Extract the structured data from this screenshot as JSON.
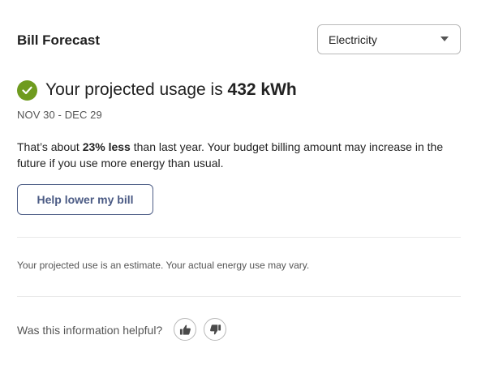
{
  "header": {
    "title": "Bill Forecast"
  },
  "fuel_select": {
    "selected": "Electricity",
    "caret_icon": "chevron-down-icon"
  },
  "forecast": {
    "status_icon": "check-circle-icon",
    "status_color": "#6f9b1f",
    "headline_prefix": "Your projected usage is ",
    "headline_value": "432 kWh",
    "date_range": "NOV 30 - DEC 29",
    "description_prefix": "That’s about ",
    "description_emphasis": "23% less",
    "description_suffix": " than last year. Your budget billing amount may increase in the future if you use more energy than usual."
  },
  "actions": {
    "help_button_label": "Help lower my bill"
  },
  "disclaimer": "Your projected use is an estimate. Your actual energy use may vary.",
  "feedback": {
    "question": "Was this information helpful?",
    "thumbs_up_icon": "thumbs-up-icon",
    "thumbs_down_icon": "thumbs-down-icon"
  },
  "colors": {
    "accent_button_border": "#4f5f87",
    "accent_button_text": "#4a5a84",
    "success": "#6f9b1f"
  }
}
